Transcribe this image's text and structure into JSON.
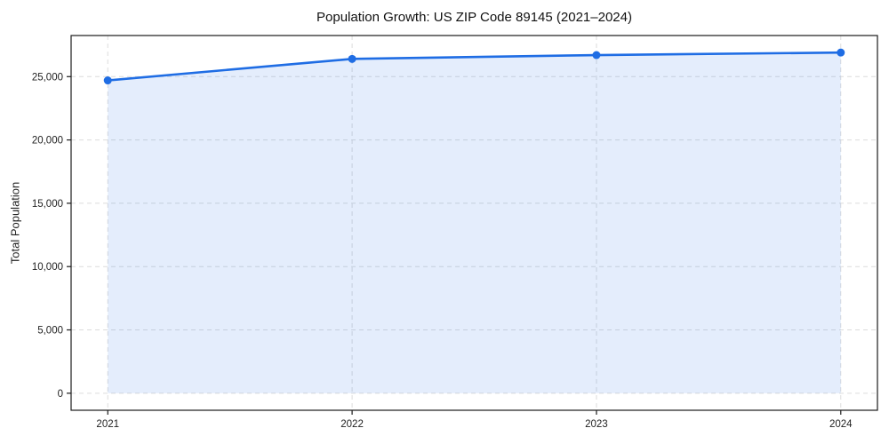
{
  "figure": {
    "background": "#ffffff"
  },
  "chart_data": {
    "type": "line",
    "title": "Population Growth: US ZIP Code 89145 (2021–2024)",
    "xlabel": "",
    "ylabel": "Total Population",
    "x": [
      2021,
      2022,
      2023,
      2024
    ],
    "series": [
      {
        "name": "Total Population",
        "values": [
          24700,
          26400,
          26700,
          26900
        ]
      }
    ],
    "xticks": [
      2021,
      2022,
      2023,
      2024
    ],
    "yticks": [
      0,
      5000,
      10000,
      15000,
      20000,
      25000
    ],
    "ytick_labels": [
      "0",
      "5,000",
      "10,000",
      "15,000",
      "20,000",
      "25,000"
    ],
    "xlim": [
      2020.85,
      2024.15
    ],
    "ylim": [
      -1345,
      28245
    ],
    "grid": true,
    "grid_style": "dashed",
    "legend": false,
    "area_fill": true,
    "area_baseline": 0,
    "marker": "circle",
    "colors": {
      "line": "#1f6de4",
      "marker": "#1f6de4",
      "fill": "rgba(31,109,228,0.12)",
      "grid": "#dcdcdc",
      "spine": "#1a1a1a",
      "tick_label": "#1f1f1f",
      "title": "#111111"
    }
  }
}
